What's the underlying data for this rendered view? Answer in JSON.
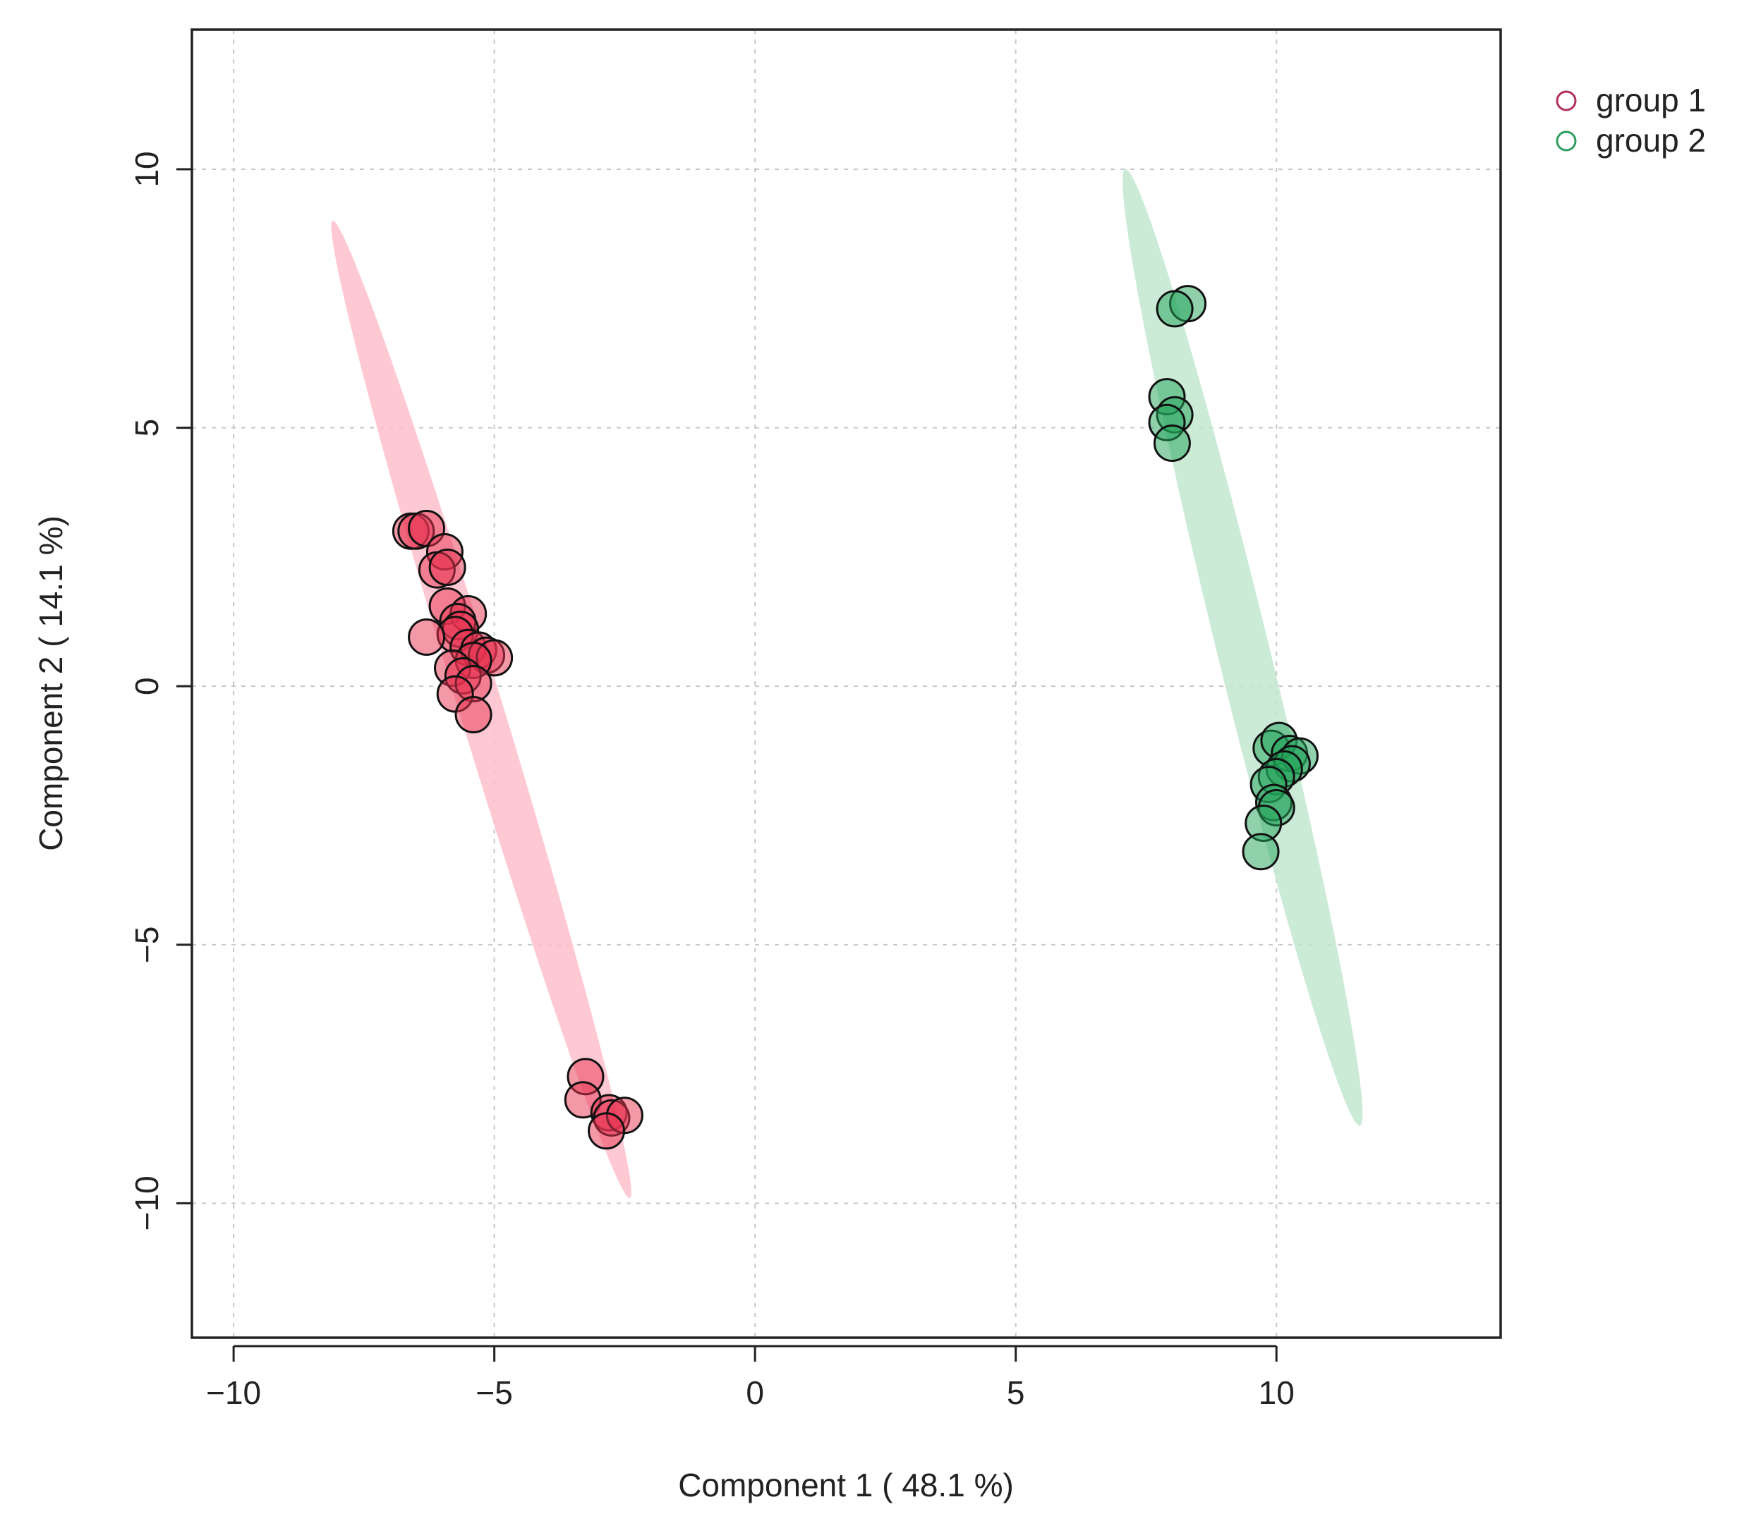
{
  "chart_data": {
    "type": "scatter",
    "title": "",
    "xlabel": "Component 1 ( 48.1 %)",
    "ylabel": "Component 2 ( 14.1 %)",
    "xlim": [
      -10.8,
      14.3
    ],
    "ylim": [
      -12.6,
      12.7
    ],
    "xticks": [
      -10,
      -5,
      0,
      5,
      10
    ],
    "yticks": [
      -10,
      -5,
      0,
      5,
      10
    ],
    "grid": true,
    "legend_position": "top-right",
    "series": [
      {
        "name": "group 1",
        "point_color": "#E8314F",
        "ellipse_color": "#FFC0CB",
        "legend_color": "#B03060",
        "ellipse": {
          "center": [
            -5.25,
            -0.45
          ],
          "vertex_a": [
            -8.1,
            9.0
          ],
          "vertex_b": [
            -2.4,
            -9.9
          ],
          "half_width": 0.42
        },
        "points": [
          [
            -6.6,
            3.0
          ],
          [
            -6.5,
            3.0
          ],
          [
            -6.3,
            3.05
          ],
          [
            -5.95,
            2.6
          ],
          [
            -6.1,
            2.25
          ],
          [
            -5.9,
            2.3
          ],
          [
            -5.9,
            1.55
          ],
          [
            -5.5,
            1.4
          ],
          [
            -5.7,
            1.25
          ],
          [
            -5.65,
            1.1
          ],
          [
            -5.75,
            1.0
          ],
          [
            -6.3,
            0.95
          ],
          [
            -5.5,
            0.75
          ],
          [
            -5.3,
            0.7
          ],
          [
            -5.15,
            0.6
          ],
          [
            -5.0,
            0.55
          ],
          [
            -5.4,
            0.5
          ],
          [
            -5.8,
            0.35
          ],
          [
            -5.6,
            0.2
          ],
          [
            -5.4,
            0.05
          ],
          [
            -5.75,
            -0.15
          ],
          [
            -5.4,
            -0.55
          ],
          [
            -3.25,
            -7.55
          ],
          [
            -3.3,
            -8.0
          ],
          [
            -2.8,
            -8.25
          ],
          [
            -2.75,
            -8.35
          ],
          [
            -2.5,
            -8.3
          ],
          [
            -2.85,
            -8.6
          ]
        ]
      },
      {
        "name": "group 2",
        "point_color": "#22A45A",
        "ellipse_color": "#C2E8D0",
        "legend_color": "#2E9E60",
        "ellipse": {
          "center": [
            9.35,
            0.75
          ],
          "vertex_a": [
            7.1,
            10.0
          ],
          "vertex_b": [
            11.6,
            -8.5
          ],
          "half_width": 0.5
        },
        "points": [
          [
            8.3,
            7.4
          ],
          [
            8.05,
            7.3
          ],
          [
            7.9,
            5.6
          ],
          [
            8.05,
            5.25
          ],
          [
            7.9,
            5.1
          ],
          [
            8.0,
            4.7
          ],
          [
            9.9,
            -1.2
          ],
          [
            10.05,
            -1.05
          ],
          [
            10.25,
            -1.3
          ],
          [
            10.45,
            -1.35
          ],
          [
            10.3,
            -1.5
          ],
          [
            10.15,
            -1.6
          ],
          [
            10.0,
            -1.75
          ],
          [
            9.85,
            -1.9
          ],
          [
            9.95,
            -2.25
          ],
          [
            10.0,
            -2.35
          ],
          [
            9.75,
            -2.65
          ],
          [
            9.7,
            -3.2
          ]
        ]
      }
    ]
  }
}
